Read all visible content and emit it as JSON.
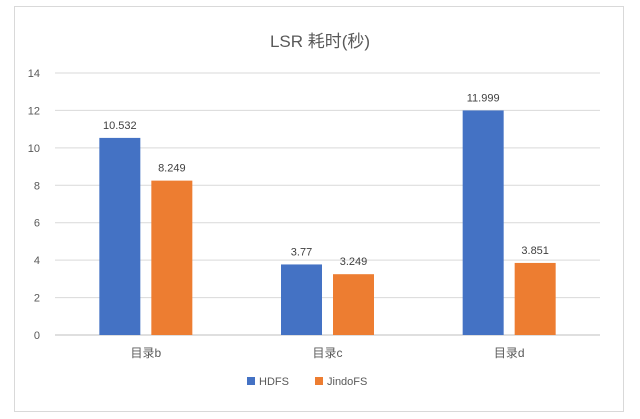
{
  "chart_data": {
    "type": "bar",
    "title": "LSR 耗时(秒)",
    "xlabel": "",
    "ylabel": "",
    "categories": [
      "目录b",
      "目录c",
      "目录d"
    ],
    "series": [
      {
        "name": "HDFS",
        "values": [
          10.532,
          3.77,
          11.999
        ],
        "color": "#4472c4"
      },
      {
        "name": "JindoFS",
        "values": [
          8.249,
          3.249,
          3.851
        ],
        "color": "#ed7d31"
      }
    ],
    "value_labels": [
      [
        "10.532",
        "3.77",
        "11.999"
      ],
      [
        "8.249",
        "3.249",
        "3.851"
      ]
    ],
    "y_tick_labels": [
      "0",
      "2",
      "4",
      "6",
      "8",
      "10",
      "12",
      "14"
    ],
    "ylim": [
      0,
      14
    ],
    "grid": true,
    "legend_position": "bottom"
  }
}
